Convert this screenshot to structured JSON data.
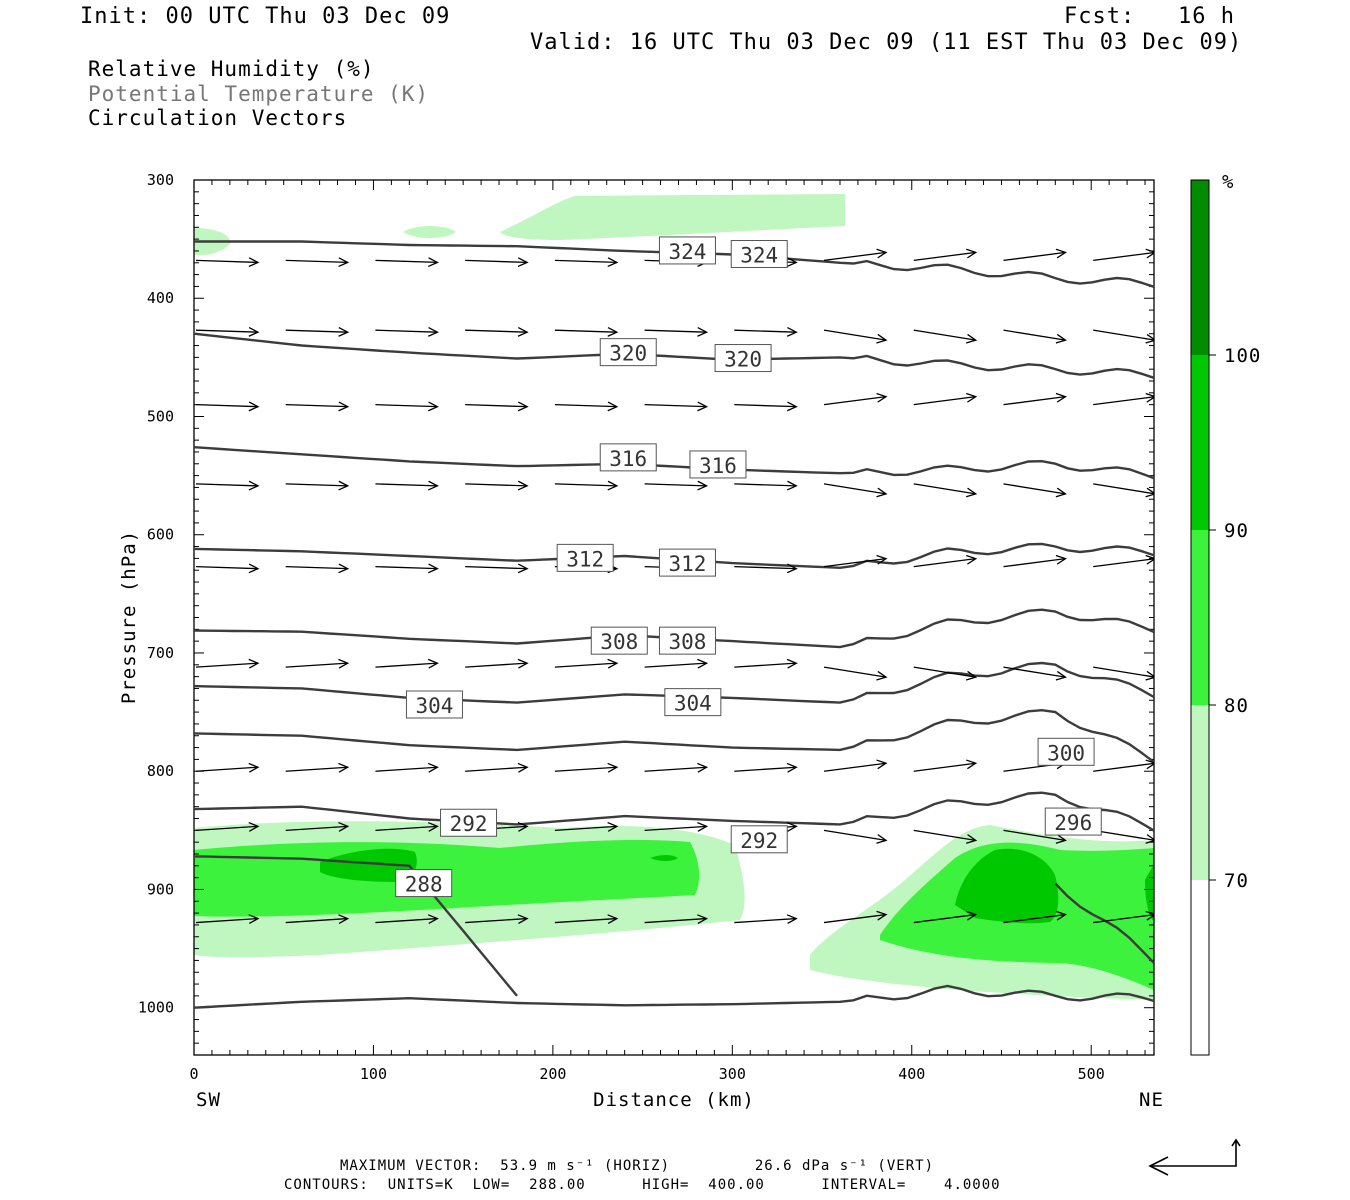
{
  "header": {
    "init": "Init: 00 UTC Thu 03 Dec 09",
    "fcst": "Fcst:   16 h",
    "valid": "Valid: 16 UTC Thu 03 Dec 09 (11 EST Thu 03 Dec 09)"
  },
  "variables": {
    "rh": "Relative Humidity (%)",
    "theta": "Potential Temperature (K)",
    "vectors": "Circulation Vectors"
  },
  "colors": {
    "rh_70_80": "#c0f6c0",
    "rh_80_90": "#3cf23c",
    "rh_90_100": "#00c800",
    "rh_100": "#008c00",
    "contour": "#3c3c3c"
  },
  "chart_data": {
    "type": "cross-section",
    "xlabel": "Distance (km)",
    "ylabel": "Pressure (hPa)",
    "xlim": [
      0,
      535
    ],
    "ylim": [
      300,
      1040
    ],
    "x_ticks": [
      "0",
      "100",
      "200",
      "300",
      "400",
      "500"
    ],
    "y_ticks": [
      "300",
      "400",
      "500",
      "600",
      "700",
      "800",
      "900",
      "1000"
    ],
    "x_ends": {
      "left": "SW",
      "right": "NE"
    },
    "rh_colorbar": {
      "unit": "%",
      "bounds": [
        "70",
        "80",
        "90",
        "100"
      ]
    },
    "isentropes": [
      {
        "theta": 324,
        "p": [
          352,
          352,
          355,
          356,
          360,
          363,
          370,
          375,
          383,
          388
        ]
      },
      {
        "theta": 320,
        "p": [
          430,
          440,
          446,
          451,
          447,
          452,
          450,
          456,
          460,
          465
        ]
      },
      {
        "theta": 316,
        "p": [
          526,
          532,
          538,
          542,
          540,
          545,
          548,
          545,
          540,
          550
        ]
      },
      {
        "theta": 312,
        "p": [
          612,
          614,
          618,
          622,
          618,
          624,
          628,
          615,
          610,
          615
        ]
      },
      {
        "theta": 308,
        "p": [
          681,
          682,
          688,
          692,
          685,
          690,
          695,
          675,
          665,
          680
        ]
      },
      {
        "theta": 304,
        "p": [
          728,
          730,
          738,
          742,
          735,
          738,
          742,
          720,
          710,
          735
        ]
      },
      {
        "theta": 300,
        "p": [
          768,
          770,
          778,
          782,
          775,
          780,
          782,
          760,
          750,
          790
        ]
      },
      {
        "theta": 296,
        "p": [
          832,
          830,
          840,
          845,
          838,
          842,
          845,
          828,
          820,
          848
        ]
      },
      {
        "theta": 292,
        "p": [
          1000,
          995,
          992,
          996,
          998,
          997,
          995,
          985,
          990,
          992
        ]
      },
      {
        "theta": 288,
        "p": [
          872,
          874,
          880,
          990,
          null,
          null,
          null,
          null,
          895,
          960
        ]
      }
    ],
    "isentrope_x": [
      0,
      60,
      120,
      180,
      240,
      300,
      360,
      420,
      480,
      535
    ],
    "contour_labels": [
      {
        "text": "324",
        "x": 275,
        "p": 360
      },
      {
        "text": "324",
        "x": 315,
        "p": 363
      },
      {
        "text": "320",
        "x": 242,
        "p": 446
      },
      {
        "text": "320",
        "x": 306,
        "p": 451
      },
      {
        "text": "316",
        "x": 242,
        "p": 535
      },
      {
        "text": "316",
        "x": 292,
        "p": 541
      },
      {
        "text": "312",
        "x": 218,
        "p": 620
      },
      {
        "text": "312",
        "x": 275,
        "p": 624
      },
      {
        "text": "308",
        "x": 237,
        "p": 690
      },
      {
        "text": "308",
        "x": 275,
        "p": 690
      },
      {
        "text": "304",
        "x": 134,
        "p": 744
      },
      {
        "text": "304",
        "x": 278,
        "p": 742
      },
      {
        "text": "300",
        "x": 486,
        "p": 784
      },
      {
        "text": "296",
        "x": 490,
        "p": 843
      },
      {
        "text": "292",
        "x": 153,
        "p": 844
      },
      {
        "text": "292",
        "x": 315,
        "p": 858
      },
      {
        "text": "288",
        "x": 128,
        "p": 895
      }
    ],
    "vectors": {
      "x": [
        0,
        50,
        100,
        150,
        200,
        250,
        300,
        350,
        400,
        450,
        500
      ],
      "p": [
        368,
        427,
        490,
        557,
        627,
        712,
        800,
        850,
        928
      ],
      "u": [
        [
          1.0,
          1.0,
          1.0,
          1.0,
          1.0,
          1.0,
          1.0,
          1.0,
          1.0,
          1.0,
          1.0
        ],
        [
          1.0,
          1.0,
          1.0,
          1.0,
          1.0,
          1.0,
          1.0,
          1.0,
          1.0,
          1.0,
          1.0
        ],
        [
          1.0,
          1.0,
          1.0,
          1.0,
          1.0,
          1.0,
          1.0,
          1.0,
          1.0,
          1.0,
          1.0
        ],
        [
          1.0,
          1.0,
          1.0,
          1.0,
          1.0,
          1.0,
          1.0,
          1.0,
          1.0,
          1.0,
          1.0
        ],
        [
          1.0,
          1.0,
          1.0,
          1.0,
          1.0,
          1.0,
          1.0,
          1.0,
          1.0,
          1.0,
          1.0
        ],
        [
          1.0,
          1.0,
          1.0,
          1.0,
          1.0,
          1.0,
          1.0,
          1.0,
          1.0,
          1.0,
          1.0
        ],
        [
          1.0,
          1.0,
          1.0,
          1.0,
          1.0,
          1.0,
          1.0,
          1.0,
          1.0,
          1.0,
          1.0
        ],
        [
          1.0,
          1.0,
          1.0,
          1.0,
          1.0,
          1.0,
          1.0,
          1.0,
          1.0,
          1.0,
          1.0
        ],
        [
          1.0,
          1.0,
          1.0,
          1.0,
          1.0,
          1.0,
          1.0,
          1.0,
          1.0,
          1.0,
          1.0
        ]
      ],
      "max_vector": "MAXIMUM VECTOR:  53.9 m s⁻¹ (HORIZ)         26.6 dPa s⁻¹ (VERT)"
    },
    "contours_info": "CONTOURS:  UNITS=K  LOW=  288.00      HIGH=  400.00      INTERVAL=    4.0000"
  }
}
